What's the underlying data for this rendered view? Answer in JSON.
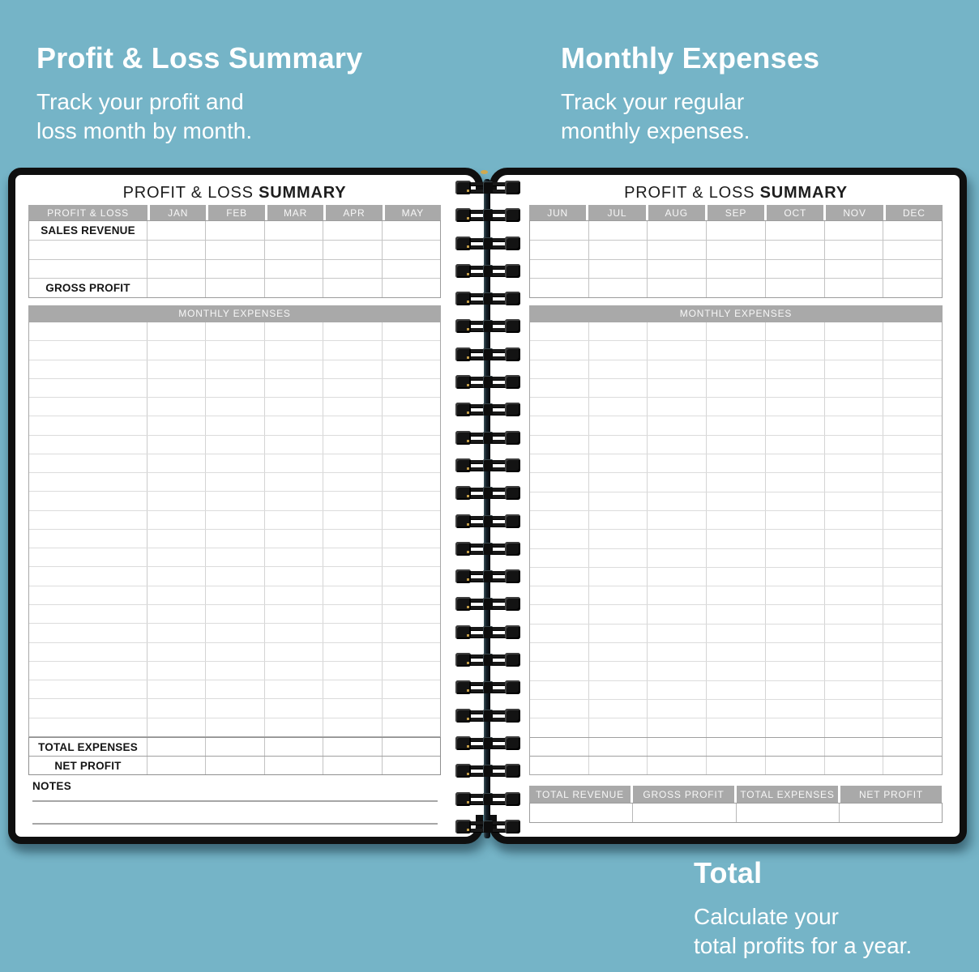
{
  "colors": {
    "background": "#75b4c7",
    "page": "#ffffff",
    "cover_frame": "#0f0f0f",
    "header_bar": "#a9a9a9",
    "header_text": "#f7f7f7",
    "label_text": "#151515",
    "caption_text": "#ffffff"
  },
  "captions": {
    "top_left": {
      "title": "Profit & Loss Summary",
      "lines": [
        "Track your profit and",
        "loss month by month."
      ]
    },
    "top_right": {
      "title": "Monthly Expenses",
      "lines": [
        "Track your regular",
        "monthly expenses."
      ]
    },
    "bottom_right": {
      "title": "Total",
      "lines": [
        "Calculate your",
        "total profits for a year."
      ]
    }
  },
  "left_page": {
    "title_regular": "PROFIT & LOSS ",
    "title_bold": "SUMMARY",
    "pl_table": {
      "header": [
        "PROFIT & LOSS",
        "JAN",
        "FEB",
        "MAR",
        "APR",
        "MAY"
      ],
      "rows": [
        "SALES REVENUE",
        "",
        "",
        "GROSS PROFIT"
      ]
    },
    "expenses": {
      "header": "MONTHLY EXPENSES",
      "blank_rows": 22,
      "month_columns": 5
    },
    "footer_rows": [
      "TOTAL EXPENSES",
      "NET PROFIT"
    ],
    "notes_label": "NOTES",
    "notes_lines": 2
  },
  "right_page": {
    "title_regular": "PROFIT & LOSS ",
    "title_bold": "SUMMARY",
    "pl_table": {
      "header": [
        "JUN",
        "JUL",
        "AUG",
        "SEP",
        "OCT",
        "NOV",
        "DEC"
      ],
      "blank_rows": 4
    },
    "expenses": {
      "header": "MONTHLY EXPENSES",
      "blank_rows": 24,
      "month_columns": 7
    },
    "totals_table": {
      "header": [
        "TOTAL REVENUE",
        "GROSS PROFIT",
        "TOTAL EXPENSES",
        "NET PROFIT"
      ],
      "blank_rows": 1
    }
  },
  "binding": {
    "coils": 24
  }
}
